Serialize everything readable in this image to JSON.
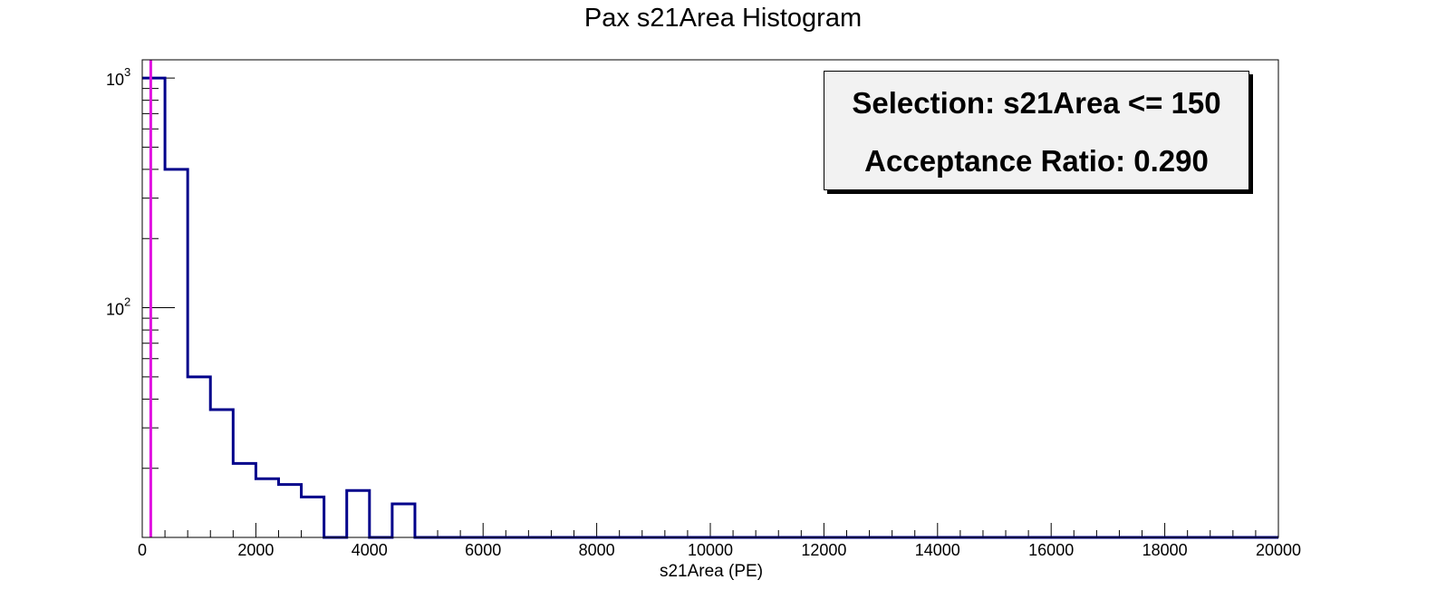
{
  "chart_data": {
    "type": "histogram",
    "title": "Pax s21Area Histogram",
    "xlabel": "s21Area (PE)",
    "ylabel": "",
    "xlim": [
      0,
      20000
    ],
    "ylim": [
      10,
      1200
    ],
    "yscale": "log",
    "grid": false,
    "bin_width": 400,
    "bin_edges_start": 0,
    "counts": [
      1000,
      400,
      50,
      36,
      21,
      18,
      17,
      15,
      0,
      16,
      0,
      14,
      0,
      0,
      0,
      0,
      0,
      0,
      0,
      0,
      0,
      0,
      0,
      0,
      0,
      0,
      0,
      0,
      0,
      0,
      0,
      0,
      0,
      0,
      0,
      0,
      0,
      0,
      0,
      0,
      0,
      0,
      0,
      0,
      0,
      0,
      0,
      0,
      0,
      0
    ],
    "line_color": "#00008b",
    "cut_line": {
      "x": 150,
      "color": "#e010e0"
    },
    "x_ticks": [
      "0",
      "2000",
      "4000",
      "6000",
      "8000",
      "10000",
      "12000",
      "14000",
      "16000",
      "18000",
      "20000"
    ],
    "y_ticks": [
      {
        "value": 100,
        "base": "10",
        "exp": "2"
      },
      {
        "value": 1000,
        "base": "10",
        "exp": "3"
      }
    ],
    "stats_box": {
      "line1": "Selection: s21Area <= 150",
      "line2": "Acceptance Ratio: 0.290",
      "background": "#f2f2f2"
    }
  }
}
